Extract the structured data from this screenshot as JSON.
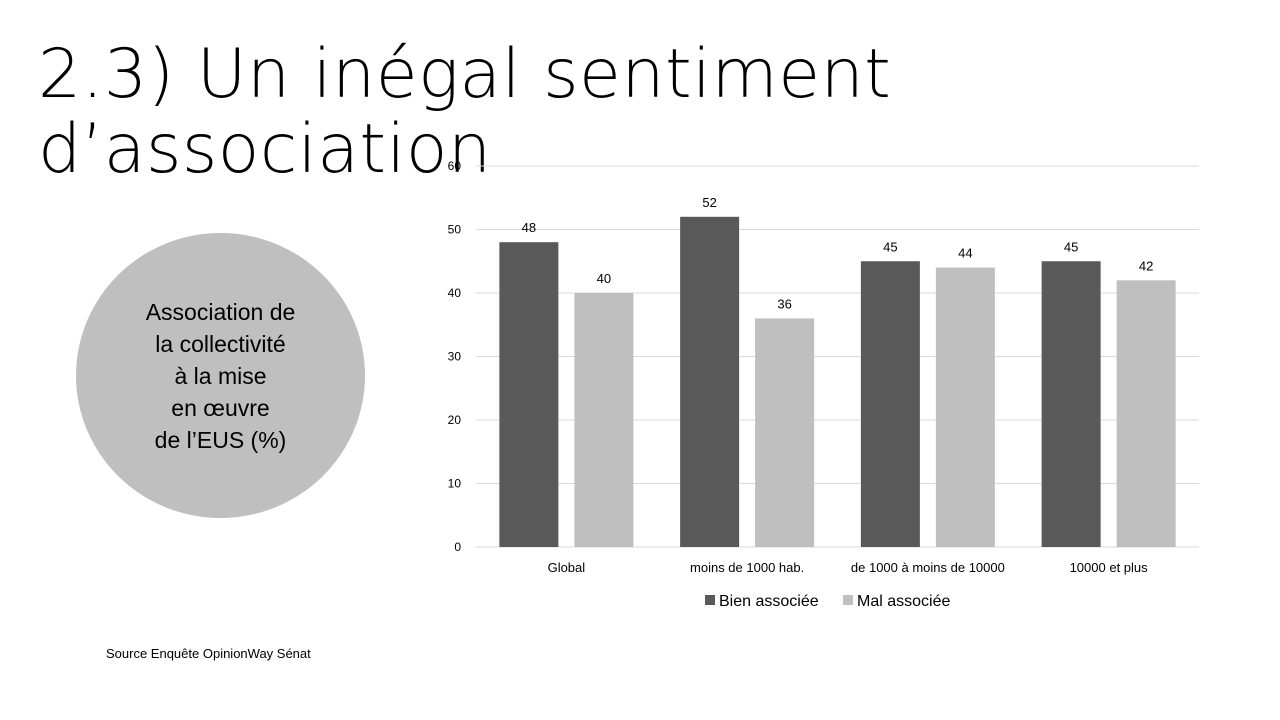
{
  "slide": {
    "title": "2.3) Un inégal sentiment d’association",
    "circle_text": "Association de\nla collectivité\nà la mise\nen œuvre\nde l’EUS (%)",
    "source": "Source Enquête OpinionWay Sénat"
  },
  "colors": {
    "bien": "#595959",
    "mal": "#bfbfbf",
    "circle": "#bfbfbf",
    "grid": "#d9d9d9"
  },
  "chart_data": {
    "type": "bar",
    "categories": [
      "Global",
      "moins de 1000 hab.",
      "de 1000 à moins de 10000",
      "10000 et plus"
    ],
    "series": [
      {
        "name": "Bien associée",
        "values": [
          48,
          52,
          45,
          45
        ]
      },
      {
        "name": "Mal associée",
        "values": [
          40,
          36,
          44,
          42
        ]
      }
    ],
    "ylim": [
      0,
      60
    ],
    "yticks": [
      0,
      10,
      20,
      30,
      40,
      50,
      60
    ],
    "grid": true,
    "legend": "bottom",
    "data_labels": true
  }
}
